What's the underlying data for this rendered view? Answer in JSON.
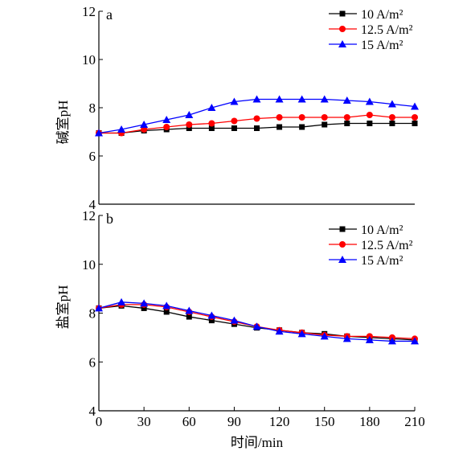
{
  "chart_data": [
    {
      "type": "line",
      "panel_label": "a",
      "ylabel": "碱室pH",
      "xlabel": "",
      "x": [
        0,
        15,
        30,
        45,
        60,
        75,
        90,
        105,
        120,
        135,
        150,
        165,
        180,
        195,
        210
      ],
      "xlim": [
        0,
        210
      ],
      "ylim": [
        4,
        12
      ],
      "yticks": [
        "4",
        "6",
        "8",
        "10",
        "12"
      ],
      "legend_position": "top-right",
      "grid": false,
      "series": [
        {
          "name": "10 A/m²",
          "color": "#000000",
          "marker": "square",
          "values": [
            6.95,
            6.95,
            7.05,
            7.1,
            7.15,
            7.15,
            7.15,
            7.15,
            7.2,
            7.2,
            7.3,
            7.35,
            7.35,
            7.35,
            7.35
          ]
        },
        {
          "name": "12.5 A/m²",
          "color": "#ff0000",
          "marker": "circle",
          "values": [
            6.95,
            6.95,
            7.1,
            7.2,
            7.3,
            7.35,
            7.45,
            7.55,
            7.6,
            7.6,
            7.6,
            7.6,
            7.7,
            7.6,
            7.6
          ]
        },
        {
          "name": "15 A/m²",
          "color": "#0000ff",
          "marker": "triangle",
          "values": [
            6.95,
            7.1,
            7.3,
            7.5,
            7.7,
            8.0,
            8.25,
            8.35,
            8.35,
            8.35,
            8.35,
            8.3,
            8.25,
            8.15,
            8.05
          ]
        }
      ]
    },
    {
      "type": "line",
      "panel_label": "b",
      "ylabel": "盐室pH",
      "xlabel": "时间/min",
      "x": [
        0,
        15,
        30,
        45,
        60,
        75,
        90,
        105,
        120,
        135,
        150,
        165,
        180,
        195,
        210
      ],
      "xticks": [
        "0",
        "30",
        "60",
        "90",
        "120",
        "150",
        "180",
        "210"
      ],
      "xlim": [
        0,
        210
      ],
      "ylim": [
        4,
        12
      ],
      "yticks": [
        "4",
        "6",
        "8",
        "10",
        "12"
      ],
      "legend_position": "top-right",
      "grid": false,
      "series": [
        {
          "name": "10 A/m²",
          "color": "#000000",
          "marker": "square",
          "values": [
            8.2,
            8.3,
            8.2,
            8.05,
            7.85,
            7.7,
            7.55,
            7.4,
            7.3,
            7.2,
            7.15,
            7.05,
            7.0,
            6.95,
            6.9
          ]
        },
        {
          "name": "12.5 A/m²",
          "color": "#ff0000",
          "marker": "circle",
          "values": [
            8.2,
            8.35,
            8.35,
            8.25,
            8.05,
            7.85,
            7.65,
            7.45,
            7.3,
            7.2,
            7.1,
            7.05,
            7.05,
            7.0,
            6.95
          ]
        },
        {
          "name": "15 A/m²",
          "color": "#0000ff",
          "marker": "triangle",
          "values": [
            8.2,
            8.45,
            8.4,
            8.3,
            8.1,
            7.9,
            7.7,
            7.45,
            7.25,
            7.15,
            7.05,
            6.95,
            6.9,
            6.85,
            6.85
          ]
        }
      ]
    }
  ]
}
